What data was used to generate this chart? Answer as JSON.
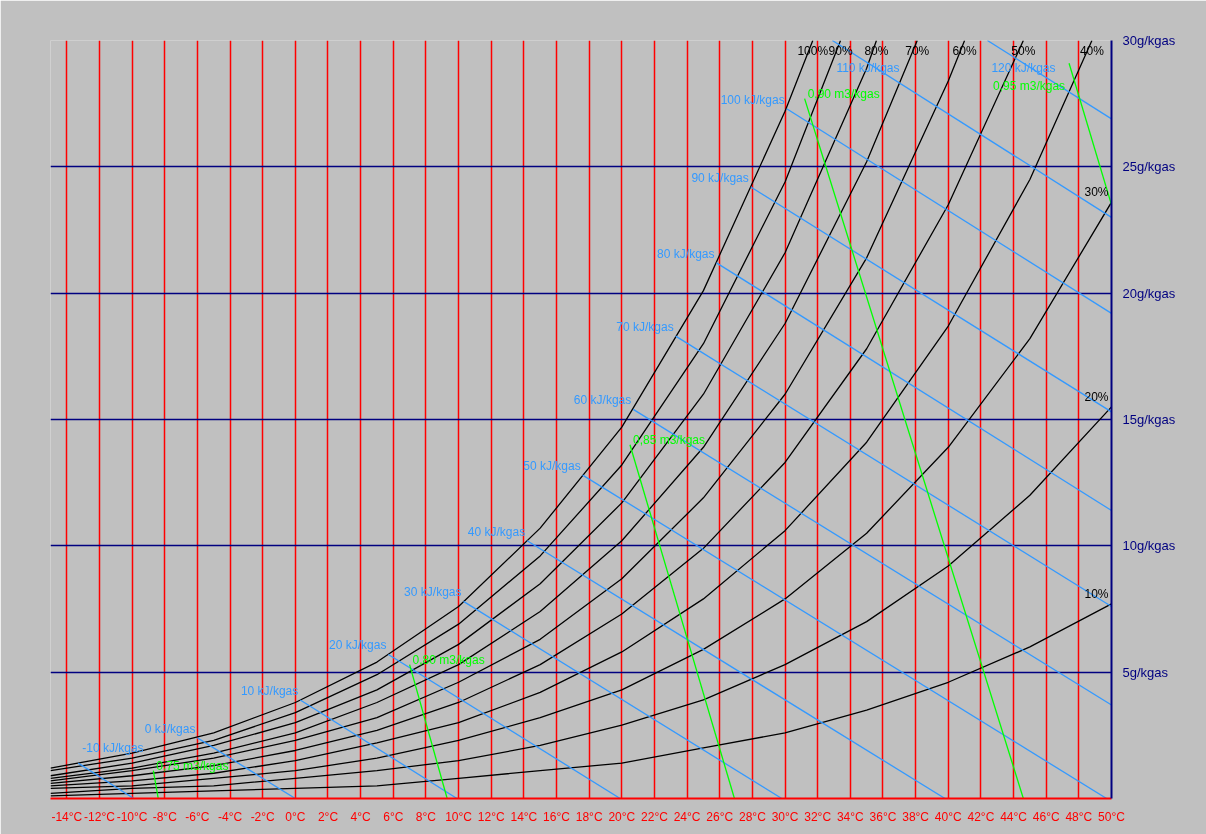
{
  "chart_data": {
    "type": "line",
    "xlim": [
      -15,
      50
    ],
    "ylim": [
      0,
      30
    ],
    "xticks": [
      {
        "value": -14,
        "label": "-14°C"
      },
      {
        "value": -12,
        "label": "-12°C"
      },
      {
        "value": -10,
        "label": "-10°C"
      },
      {
        "value": -8,
        "label": "-8°C"
      },
      {
        "value": -6,
        "label": "-6°C"
      },
      {
        "value": -4,
        "label": "-4°C"
      },
      {
        "value": -2,
        "label": "-2°C"
      },
      {
        "value": 0,
        "label": "0°C"
      },
      {
        "value": 2,
        "label": "2°C"
      },
      {
        "value": 4,
        "label": "4°C"
      },
      {
        "value": 6,
        "label": "6°C"
      },
      {
        "value": 8,
        "label": "8°C"
      },
      {
        "value": 10,
        "label": "10°C"
      },
      {
        "value": 12,
        "label": "12°C"
      },
      {
        "value": 14,
        "label": "14°C"
      },
      {
        "value": 16,
        "label": "16°C"
      },
      {
        "value": 18,
        "label": "18°C"
      },
      {
        "value": 20,
        "label": "20°C"
      },
      {
        "value": 22,
        "label": "22°C"
      },
      {
        "value": 24,
        "label": "24°C"
      },
      {
        "value": 26,
        "label": "26°C"
      },
      {
        "value": 28,
        "label": "28°C"
      },
      {
        "value": 30,
        "label": "30°C"
      },
      {
        "value": 32,
        "label": "32°C"
      },
      {
        "value": 34,
        "label": "34°C"
      },
      {
        "value": 36,
        "label": "36°C"
      },
      {
        "value": 38,
        "label": "38°C"
      },
      {
        "value": 40,
        "label": "40°C"
      },
      {
        "value": 42,
        "label": "42°C"
      },
      {
        "value": 44,
        "label": "44°C"
      },
      {
        "value": 46,
        "label": "46°C"
      },
      {
        "value": 48,
        "label": "48°C"
      },
      {
        "value": 50,
        "label": "50°C"
      }
    ],
    "yticks": [
      {
        "value": 5,
        "label": "5g/kgas"
      },
      {
        "value": 10,
        "label": "10g/kgas"
      },
      {
        "value": 15,
        "label": "15g/kgas"
      },
      {
        "value": 20,
        "label": "20g/kgas"
      },
      {
        "value": 25,
        "label": "25g/kgas"
      },
      {
        "value": 30,
        "label": "30g/kgas"
      }
    ],
    "grid": true,
    "series": [
      {
        "name": "100%",
        "color": "#000000",
        "x": [
          -15,
          -10,
          -5,
          0,
          5,
          10,
          15,
          20,
          25,
          30,
          31.7
        ],
        "values": [
          1.2,
          1.8,
          2.6,
          3.8,
          5.4,
          7.6,
          10.7,
          14.7,
          20.1,
          27.2,
          30
        ]
      },
      {
        "name": "90%",
        "color": "#000000",
        "x": [
          -15,
          -10,
          -5,
          0,
          5,
          10,
          15,
          20,
          25,
          30,
          33.4
        ],
        "values": [
          1.1,
          1.6,
          2.3,
          3.4,
          4.9,
          6.9,
          9.6,
          13.2,
          18.0,
          24.4,
          30
        ]
      },
      {
        "name": "80%",
        "color": "#000000",
        "x": [
          -15,
          -10,
          -5,
          0,
          5,
          10,
          15,
          20,
          25,
          30,
          35,
          35.6
        ],
        "values": [
          0.9,
          1.4,
          2.1,
          3.0,
          4.3,
          6.1,
          8.5,
          11.7,
          16.0,
          21.6,
          28.9,
          30
        ]
      },
      {
        "name": "70%",
        "color": "#000000",
        "x": [
          -15,
          -10,
          -5,
          0,
          5,
          10,
          15,
          20,
          25,
          30,
          35,
          38.1
        ],
        "values": [
          0.8,
          1.2,
          1.8,
          2.6,
          3.8,
          5.3,
          7.4,
          10.2,
          13.9,
          18.8,
          25.2,
          30
        ]
      },
      {
        "name": "60%",
        "color": "#000000",
        "x": [
          -15,
          -10,
          -5,
          0,
          5,
          10,
          15,
          20,
          25,
          30,
          35,
          40,
          41.0
        ],
        "values": [
          0.7,
          1.1,
          1.6,
          2.3,
          3.2,
          4.6,
          6.3,
          8.7,
          11.9,
          16.0,
          21.4,
          28.4,
          30
        ]
      },
      {
        "name": "50%",
        "color": "#000000",
        "x": [
          -15,
          -10,
          -5,
          0,
          5,
          10,
          15,
          20,
          25,
          30,
          35,
          40,
          44.6
        ],
        "values": [
          0.6,
          0.9,
          1.3,
          1.9,
          2.7,
          3.8,
          5.3,
          7.3,
          9.9,
          13.3,
          17.8,
          23.5,
          30
        ]
      },
      {
        "name": "40%",
        "color": "#000000",
        "x": [
          -15,
          -10,
          -5,
          0,
          5,
          10,
          15,
          20,
          25,
          30,
          35,
          40,
          45,
          48.8
        ],
        "values": [
          0.5,
          0.7,
          1.0,
          1.5,
          2.2,
          3.0,
          4.2,
          5.8,
          7.9,
          10.6,
          14.1,
          18.7,
          24.5,
          30
        ]
      },
      {
        "name": "30%",
        "color": "#000000",
        "x": [
          -15,
          -10,
          -5,
          0,
          5,
          10,
          15,
          20,
          25,
          30,
          35,
          40,
          45,
          50
        ],
        "values": [
          0.4,
          0.5,
          0.8,
          1.1,
          1.6,
          2.3,
          3.2,
          4.3,
          5.9,
          7.9,
          10.5,
          13.9,
          18.2,
          23.6
        ]
      },
      {
        "name": "20%",
        "color": "#000000",
        "x": [
          -15,
          -10,
          -5,
          0,
          5,
          10,
          15,
          20,
          25,
          30,
          35,
          40,
          45,
          50
        ],
        "values": [
          0.2,
          0.4,
          0.5,
          0.8,
          1.1,
          1.5,
          2.1,
          2.9,
          3.9,
          5.3,
          7.0,
          9.2,
          12.0,
          15.5
        ]
      },
      {
        "name": "10%",
        "color": "#000000",
        "x": [
          -15,
          -10,
          -5,
          0,
          5,
          10,
          15,
          20,
          25,
          30,
          35,
          40,
          45,
          50
        ],
        "values": [
          0.1,
          0.2,
          0.3,
          0.4,
          0.5,
          0.8,
          1.1,
          1.4,
          2.0,
          2.6,
          3.5,
          4.6,
          6.0,
          7.7
        ]
      },
      {
        "name": "-10 kJ/kgas",
        "color": "#3399ff",
        "x": [
          -13.3,
          -9.9
        ],
        "values": [
          1.4,
          0
        ]
      },
      {
        "name": "0 kJ/kgas",
        "color": "#3399ff",
        "x": [
          -6.0,
          0
        ],
        "values": [
          2.4,
          0
        ]
      },
      {
        "name": "10 kJ/kgas",
        "color": "#3399ff",
        "x": [
          0.3,
          9.9
        ],
        "values": [
          3.9,
          0
        ]
      },
      {
        "name": "20 kJ/kgas",
        "color": "#3399ff",
        "x": [
          5.7,
          19.9
        ],
        "values": [
          5.7,
          0
        ]
      },
      {
        "name": "30 kJ/kgas",
        "color": "#3399ff",
        "x": [
          10.3,
          29.8
        ],
        "values": [
          7.8,
          0
        ]
      },
      {
        "name": "40 kJ/kgas",
        "color": "#3399ff",
        "x": [
          14.2,
          39.8
        ],
        "values": [
          10.2,
          0
        ]
      },
      {
        "name": "50 kJ/kgas",
        "color": "#3399ff",
        "x": [
          17.6,
          49.7
        ],
        "values": [
          12.8,
          0
        ]
      },
      {
        "name": "60 kJ/kgas",
        "color": "#3399ff",
        "x": [
          20.7,
          50
        ],
        "values": [
          15.4,
          3.7
        ]
      },
      {
        "name": "70 kJ/kgas",
        "color": "#3399ff",
        "x": [
          23.3,
          50
        ],
        "values": [
          18.3,
          7.6
        ]
      },
      {
        "name": "80 kJ/kgas",
        "color": "#3399ff",
        "x": [
          25.8,
          50
        ],
        "values": [
          21.2,
          11.4
        ]
      },
      {
        "name": "90 kJ/kgas",
        "color": "#3399ff",
        "x": [
          27.9,
          50
        ],
        "values": [
          24.2,
          15.3
        ]
      },
      {
        "name": "100 kJ/kgas",
        "color": "#3399ff",
        "x": [
          30.1,
          50
        ],
        "values": [
          27.3,
          19.2
        ]
      },
      {
        "name": "110 kJ/kgas",
        "color": "#3399ff",
        "x": [
          32.9,
          50
        ],
        "values": [
          30,
          23.0
        ]
      },
      {
        "name": "120 kJ/kgas",
        "color": "#3399ff",
        "x": [
          42.4,
          50
        ],
        "values": [
          30,
          26.9
        ]
      },
      {
        "name": "0,75 m3/kgas",
        "color": "#00ff00",
        "x": [
          -8.7,
          -8.4
        ],
        "values": [
          1.1,
          0
        ]
      },
      {
        "name": "0,80 m3/kgas",
        "color": "#00ff00",
        "x": [
          7.0,
          9.3
        ],
        "values": [
          5.3,
          0
        ]
      },
      {
        "name": "0,85 m3/kgas",
        "color": "#00ff00",
        "x": [
          20.5,
          26.9
        ],
        "values": [
          14.0,
          0
        ]
      },
      {
        "name": "0,90 m3/kgas",
        "color": "#00ff00",
        "x": [
          31.2,
          44.6
        ],
        "values": [
          27.7,
          0
        ]
      },
      {
        "name": "0,95 m3/kgas",
        "color": "#00ff00",
        "x": [
          47.4,
          50
        ],
        "values": [
          29.1,
          23.5
        ]
      }
    ]
  }
}
